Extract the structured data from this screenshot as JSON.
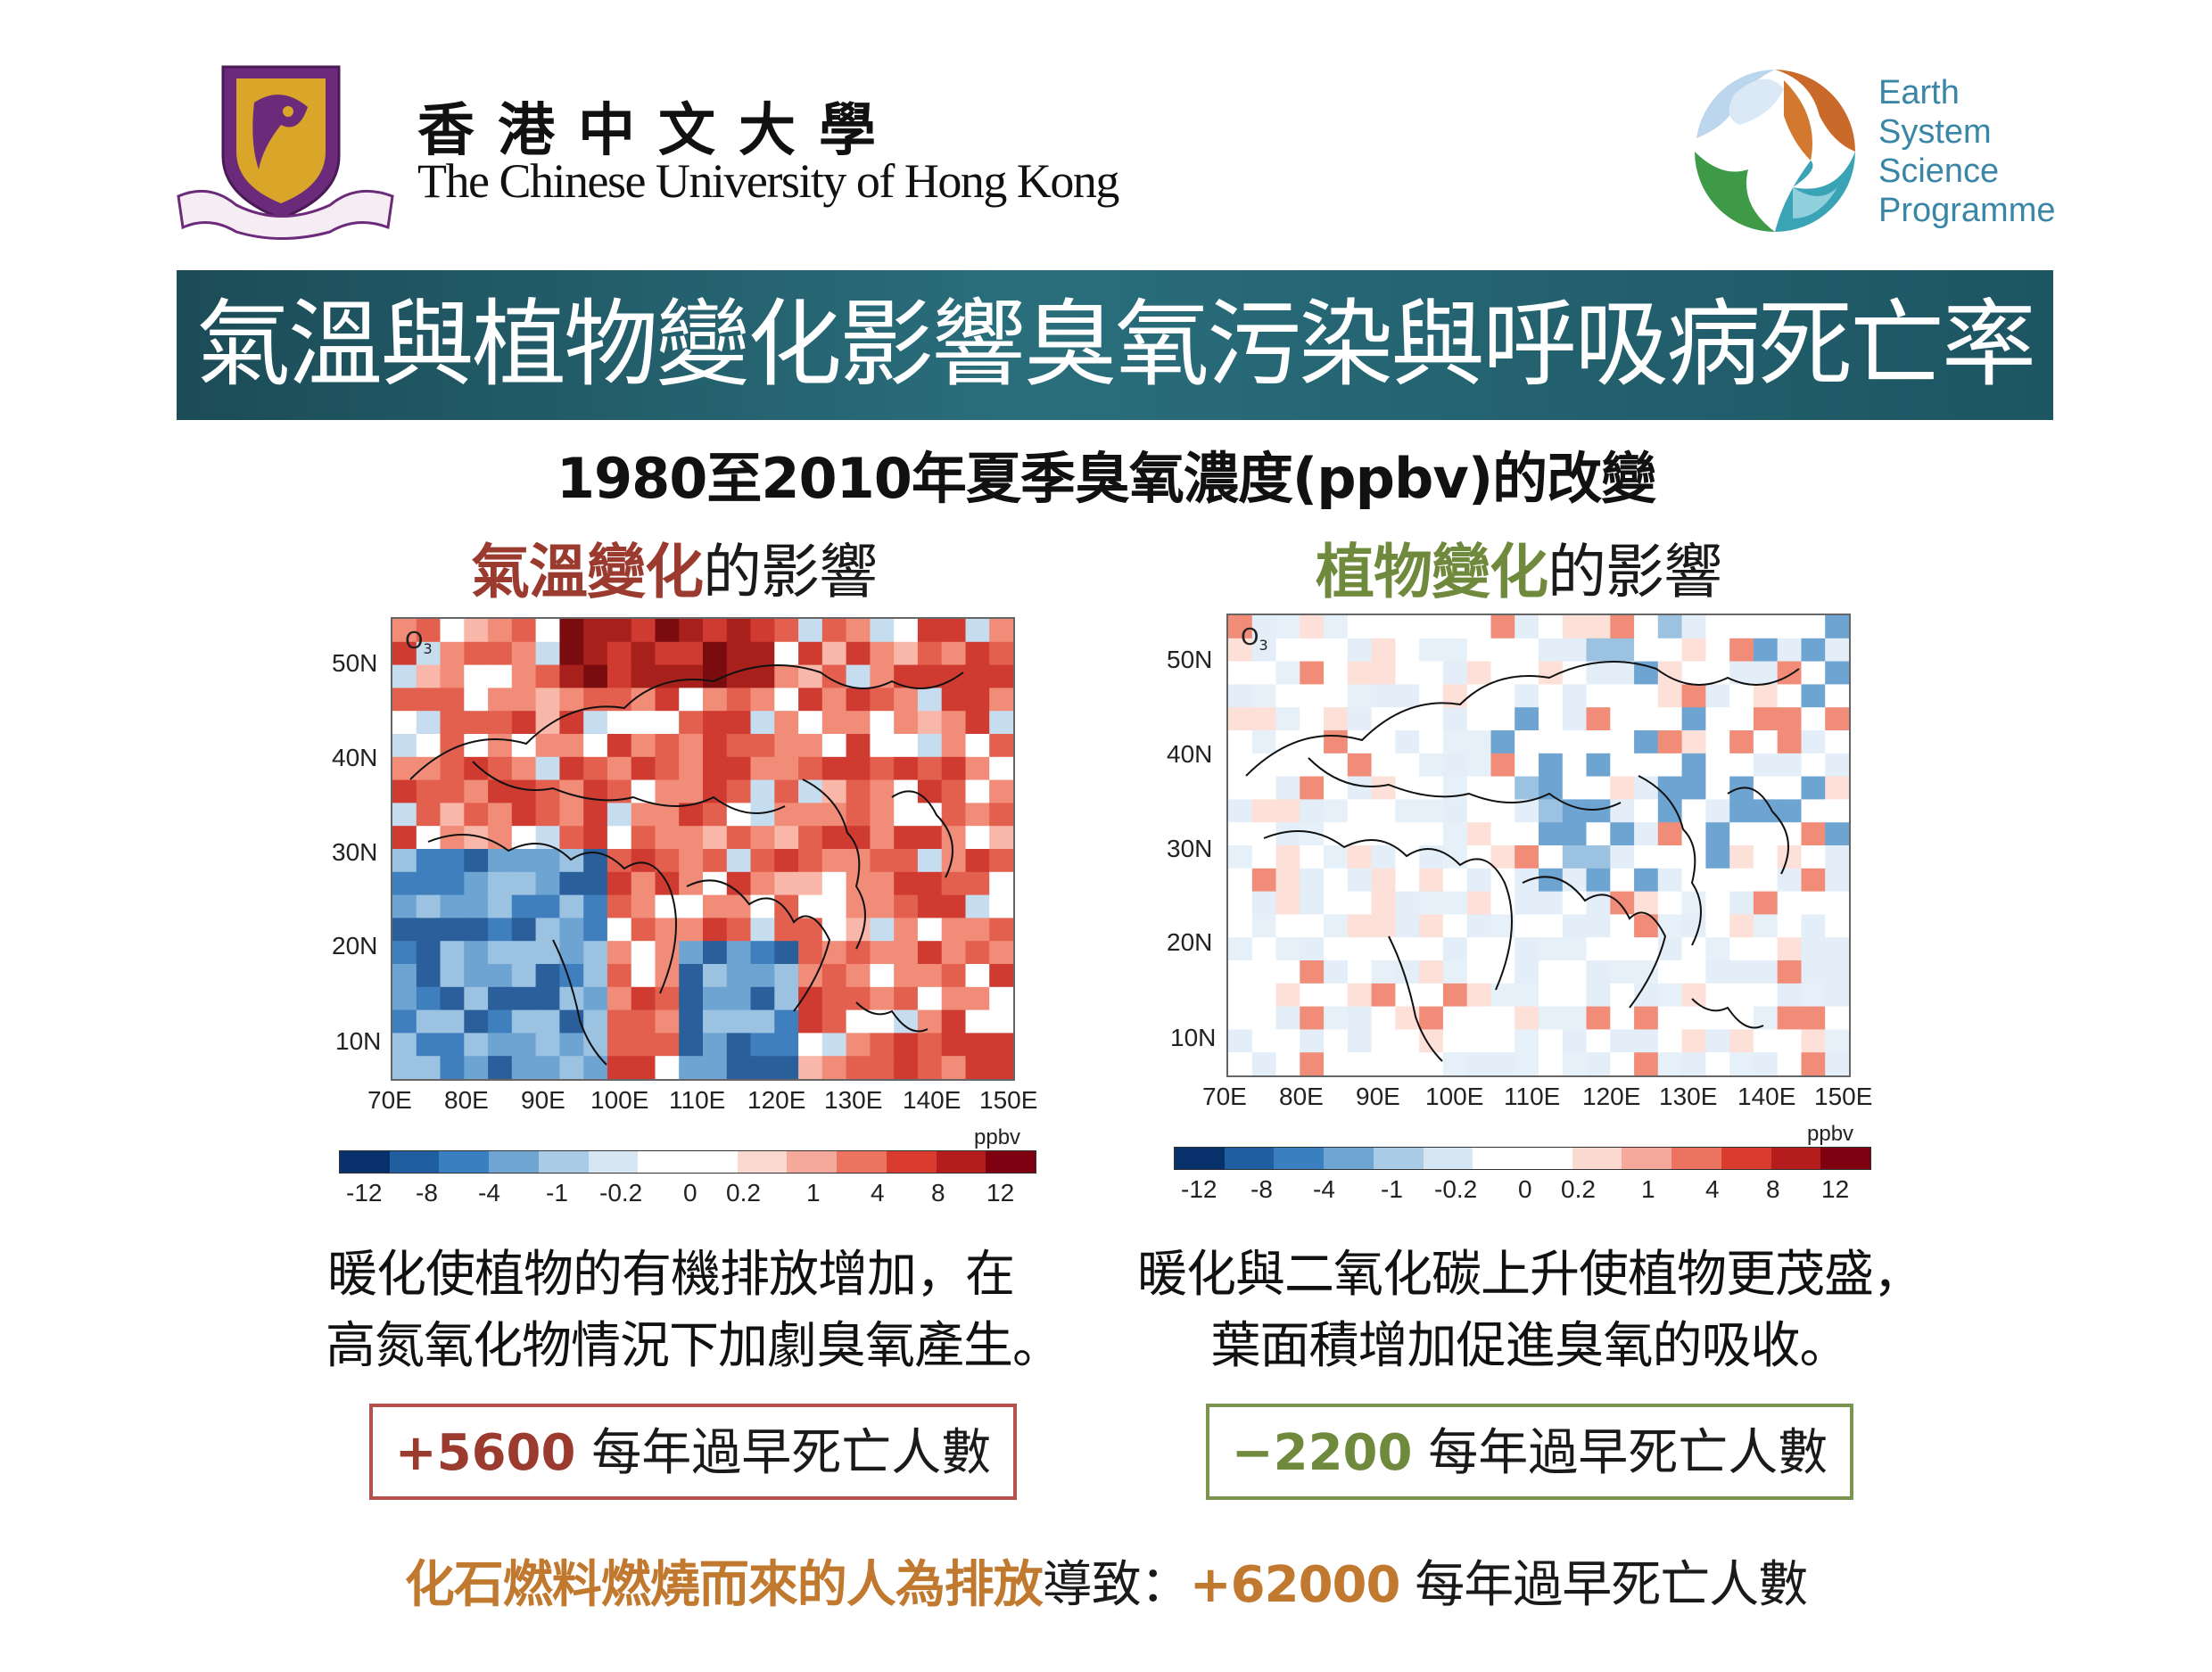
{
  "header": {
    "university_zh": "香港中文大學",
    "university_en": "The Chinese University of Hong Kong",
    "programme": [
      "Earth",
      "System",
      "Science",
      "Programme"
    ]
  },
  "banner": {
    "title": "氣溫與植物變化影響臭氧污染與呼吸病死亡率"
  },
  "subtitle": "1980至2010年夏季臭氧濃度(ppbv)的改變",
  "panels": [
    {
      "title_highlight": "氣溫變化",
      "title_rest": "的影響",
      "map_label": "O",
      "map_label_sub": "3",
      "lat_labels": [
        "50N",
        "40N",
        "30N",
        "20N",
        "10N"
      ],
      "lon_labels": [
        "70E",
        "80E",
        "90E",
        "100E",
        "110E",
        "120E",
        "130E",
        "140E",
        "150E"
      ],
      "colorbar_unit": "ppbv",
      "colorbar_ticks": [
        "-12",
        "-8",
        "-4",
        "-1",
        "-0.2",
        "0",
        "0.2",
        "1",
        "4",
        "8",
        "12"
      ],
      "description": [
        "暖化使植物的有機排放增加，在",
        "高氮氧化物情況下加劇臭氧產生。"
      ],
      "death_number": "+5600",
      "death_label": "每年過早死亡人數"
    },
    {
      "title_highlight": "植物變化",
      "title_rest": "的影響",
      "map_label": "O",
      "map_label_sub": "3",
      "lat_labels": [
        "50N",
        "40N",
        "30N",
        "20N",
        "10N"
      ],
      "lon_labels": [
        "70E",
        "80E",
        "90E",
        "100E",
        "110E",
        "120E",
        "130E",
        "140E",
        "150E"
      ],
      "colorbar_unit": "ppbv",
      "colorbar_ticks": [
        "-12",
        "-8",
        "-4",
        "-1",
        "-0.2",
        "0",
        "0.2",
        "1",
        "4",
        "8",
        "12"
      ],
      "description": [
        "暖化與二氧化碳上升使植物更茂盛，",
        "葉面積增加促進臭氧的吸收。"
      ],
      "death_number": "−2200",
      "death_label": "每年過早死亡人數"
    }
  ],
  "bottom": {
    "highlight": "化石燃料燃燒而來的人為排放",
    "middle": "導致：",
    "number": "+62000",
    "label": "每年過早死亡人數"
  },
  "colors": {
    "banner": "#1f5a66",
    "temperature": "#9b3a2e",
    "vegetation": "#6f8a3c",
    "anthropogenic": "#c0792e",
    "colorbar": [
      "#08306b",
      "#1f5fa0",
      "#3a7fbf",
      "#6ea5d3",
      "#a9cbe6",
      "#d6e6f3",
      "#ffffff",
      "#ffffff",
      "#fbd9d0",
      "#f5a99a",
      "#ec7360",
      "#d93b2e",
      "#b51d1d",
      "#7f0010"
    ]
  }
}
